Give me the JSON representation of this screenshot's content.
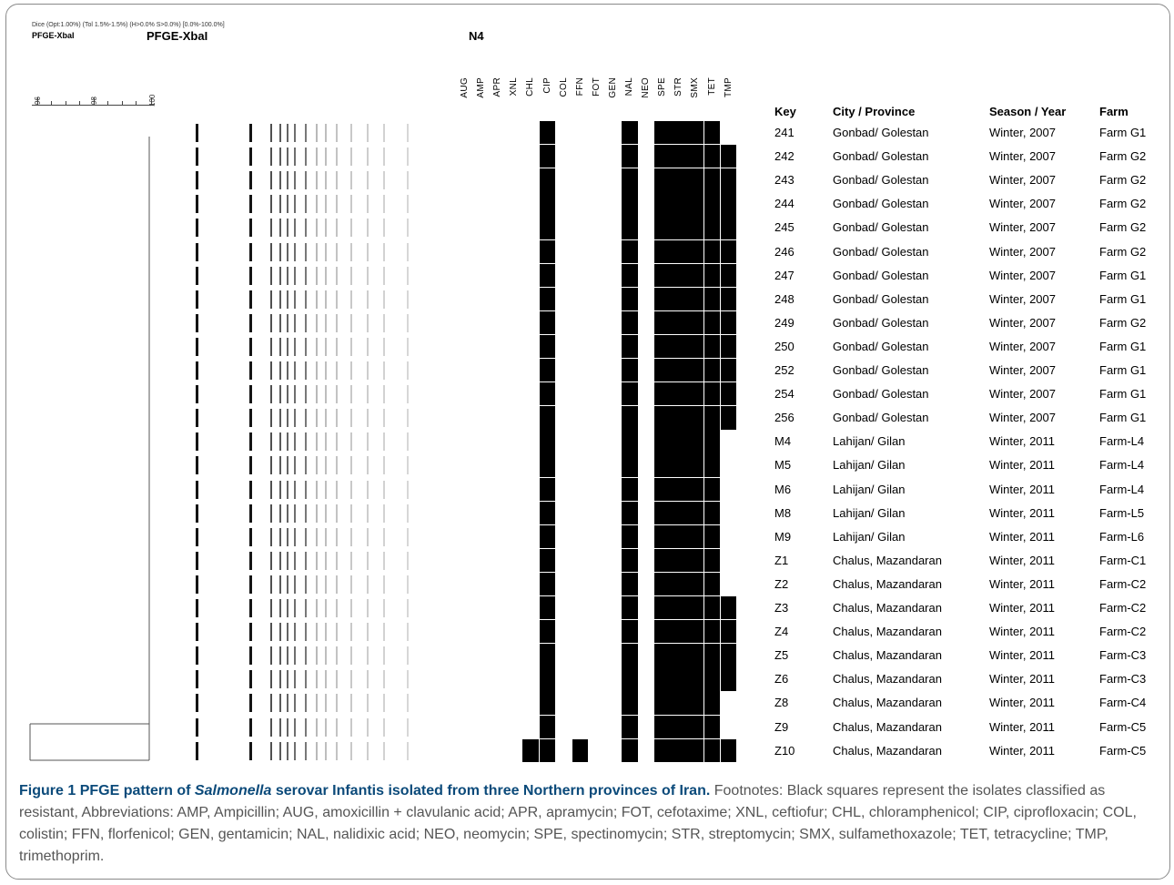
{
  "header": {
    "dice_params": "Dice (Opt:1.00%) (Tol 1.5%-1.5%) (H>0.0% S>0.0%) [0.0%-100.0%]",
    "experiment_small": "PFGE-XbaI",
    "experiment_big": "PFGE-XbaI",
    "cluster_label": "N4"
  },
  "scale": {
    "labels": [
      "96",
      "98",
      "100"
    ]
  },
  "drugs": [
    "AUG",
    "AMP",
    "APR",
    "XNL",
    "CHL",
    "CIP",
    "COL",
    "FFN",
    "FOT",
    "GEN",
    "NAL",
    "NEO",
    "SPE",
    "STR",
    "SMX",
    "TET",
    "TMP"
  ],
  "columns": {
    "key": "Key",
    "city": "City / Province",
    "season": "Season / Year",
    "farm": "Farm"
  },
  "isolates": [
    {
      "key": "241",
      "city": "Gonbad/ Golestan",
      "season": "Winter, 2007",
      "farm": "Farm G1",
      "resistant": [
        "CIP",
        "NAL",
        "SPE",
        "STR",
        "SMX",
        "TET"
      ]
    },
    {
      "key": "242",
      "city": "Gonbad/ Golestan",
      "season": "Winter, 2007",
      "farm": "Farm G2",
      "resistant": [
        "CIP",
        "NAL",
        "SPE",
        "STR",
        "SMX",
        "TET",
        "TMP"
      ]
    },
    {
      "key": "243",
      "city": "Gonbad/ Golestan",
      "season": "Winter, 2007",
      "farm": "Farm G2",
      "resistant": [
        "CIP",
        "NAL",
        "SPE",
        "STR",
        "SMX",
        "TET",
        "TMP"
      ]
    },
    {
      "key": "244",
      "city": "Gonbad/ Golestan",
      "season": "Winter, 2007",
      "farm": "Farm G2",
      "resistant": [
        "CIP",
        "NAL",
        "SPE",
        "STR",
        "SMX",
        "TET",
        "TMP"
      ]
    },
    {
      "key": "245",
      "city": "Gonbad/ Golestan",
      "season": "Winter, 2007",
      "farm": "Farm G2",
      "resistant": [
        "CIP",
        "NAL",
        "SPE",
        "STR",
        "SMX",
        "TET",
        "TMP"
      ]
    },
    {
      "key": "246",
      "city": "Gonbad/ Golestan",
      "season": "Winter, 2007",
      "farm": "Farm G2",
      "resistant": [
        "CIP",
        "NAL",
        "SPE",
        "STR",
        "SMX",
        "TET",
        "TMP"
      ]
    },
    {
      "key": "247",
      "city": "Gonbad/ Golestan",
      "season": "Winter, 2007",
      "farm": "Farm G1",
      "resistant": [
        "CIP",
        "NAL",
        "SPE",
        "STR",
        "SMX",
        "TET",
        "TMP"
      ]
    },
    {
      "key": "248",
      "city": "Gonbad/ Golestan",
      "season": "Winter, 2007",
      "farm": "Farm G1",
      "resistant": [
        "CIP",
        "NAL",
        "SPE",
        "STR",
        "SMX",
        "TET",
        "TMP"
      ]
    },
    {
      "key": "249",
      "city": "Gonbad/ Golestan",
      "season": "Winter, 2007",
      "farm": "Farm G2",
      "resistant": [
        "CIP",
        "NAL",
        "SPE",
        "STR",
        "SMX",
        "TET",
        "TMP"
      ]
    },
    {
      "key": "250",
      "city": "Gonbad/ Golestan",
      "season": "Winter, 2007",
      "farm": "Farm G1",
      "resistant": [
        "CIP",
        "NAL",
        "SPE",
        "STR",
        "SMX",
        "TET",
        "TMP"
      ]
    },
    {
      "key": "252",
      "city": "Gonbad/ Golestan",
      "season": "Winter, 2007",
      "farm": "Farm G1",
      "resistant": [
        "CIP",
        "NAL",
        "SPE",
        "STR",
        "SMX",
        "TET",
        "TMP"
      ]
    },
    {
      "key": "254",
      "city": "Gonbad/ Golestan",
      "season": "Winter, 2007",
      "farm": "Farm G1",
      "resistant": [
        "CIP",
        "NAL",
        "SPE",
        "STR",
        "SMX",
        "TET",
        "TMP"
      ]
    },
    {
      "key": "256",
      "city": "Gonbad/ Golestan",
      "season": "Winter, 2007",
      "farm": "Farm G1",
      "resistant": [
        "CIP",
        "NAL",
        "SPE",
        "STR",
        "SMX",
        "TET",
        "TMP"
      ]
    },
    {
      "key": "M4",
      "city": "Lahijan/ Gilan",
      "season": "Winter, 2011",
      "farm": "Farm-L4",
      "resistant": [
        "CIP",
        "NAL",
        "SPE",
        "STR",
        "SMX",
        "TET"
      ]
    },
    {
      "key": "M5",
      "city": "Lahijan/ Gilan",
      "season": "Winter, 2011",
      "farm": "Farm-L4",
      "resistant": [
        "CIP",
        "NAL",
        "SPE",
        "STR",
        "SMX",
        "TET"
      ]
    },
    {
      "key": "M6",
      "city": "Lahijan/ Gilan",
      "season": "Winter, 2011",
      "farm": "Farm-L4",
      "resistant": [
        "CIP",
        "NAL",
        "SPE",
        "STR",
        "SMX",
        "TET"
      ]
    },
    {
      "key": "M8",
      "city": "Lahijan/ Gilan",
      "season": "Winter, 2011",
      "farm": "Farm-L5",
      "resistant": [
        "CIP",
        "NAL",
        "SPE",
        "STR",
        "SMX",
        "TET"
      ]
    },
    {
      "key": "M9",
      "city": "Lahijan/ Gilan",
      "season": "Winter, 2011",
      "farm": "Farm-L6",
      "resistant": [
        "CIP",
        "NAL",
        "SPE",
        "STR",
        "SMX",
        "TET"
      ]
    },
    {
      "key": "Z1",
      "city": "Chalus, Mazandaran",
      "season": "Winter, 2011",
      "farm": "Farm-C1",
      "resistant": [
        "CIP",
        "NAL",
        "SPE",
        "STR",
        "SMX",
        "TET"
      ]
    },
    {
      "key": "Z2",
      "city": "Chalus, Mazandaran",
      "season": "Winter, 2011",
      "farm": "Farm-C2",
      "resistant": [
        "CIP",
        "NAL",
        "SPE",
        "STR",
        "SMX",
        "TET"
      ]
    },
    {
      "key": "Z3",
      "city": "Chalus, Mazandaran",
      "season": "Winter, 2011",
      "farm": "Farm-C2",
      "resistant": [
        "CIP",
        "NAL",
        "SPE",
        "STR",
        "SMX",
        "TET",
        "TMP"
      ]
    },
    {
      "key": "Z4",
      "city": "Chalus, Mazandaran",
      "season": "Winter, 2011",
      "farm": "Farm-C2",
      "resistant": [
        "CIP",
        "NAL",
        "SPE",
        "STR",
        "SMX",
        "TET",
        "TMP"
      ]
    },
    {
      "key": "Z5",
      "city": "Chalus, Mazandaran",
      "season": "Winter, 2011",
      "farm": "Farm-C3",
      "resistant": [
        "CIP",
        "NAL",
        "SPE",
        "STR",
        "SMX",
        "TET",
        "TMP"
      ]
    },
    {
      "key": "Z6",
      "city": "Chalus, Mazandaran",
      "season": "Winter, 2011",
      "farm": "Farm-C3",
      "resistant": [
        "CIP",
        "NAL",
        "SPE",
        "STR",
        "SMX",
        "TET",
        "TMP"
      ]
    },
    {
      "key": "Z8",
      "city": "Chalus, Mazandaran",
      "season": "Winter, 2011",
      "farm": "Farm-C4",
      "resistant": [
        "CIP",
        "NAL",
        "SPE",
        "STR",
        "SMX",
        "TET"
      ]
    },
    {
      "key": "Z9",
      "city": "Chalus, Mazandaran",
      "season": "Winter, 2011",
      "farm": "Farm-C5",
      "resistant": [
        "CIP",
        "NAL",
        "SPE",
        "STR",
        "SMX",
        "TET"
      ]
    },
    {
      "key": "Z10",
      "city": "Chalus, Mazandaran",
      "season": "Winter, 2011",
      "farm": "Farm-C5",
      "resistant": [
        "CHL",
        "CIP",
        "FFN",
        "NAL",
        "SPE",
        "STR",
        "SMX",
        "TET",
        "TMP"
      ]
    }
  ],
  "caption": {
    "label": "Figure 1",
    "title_pre": "PFGE pattern of ",
    "title_italic": "Salmonella",
    "title_post": " serovar Infantis isolated from three Northern provinces of Iran.",
    "footnote": " Footnotes: Black squares represent the isolates classified as resistant, Abbreviations: AMP, Ampicillin; AUG, amoxicillin + clavulanic acid; APR, apramycin; FOT, cefotaxime; XNL, ceftiofur; CHL, chloramphenicol; CIP, ciprofloxacin; COL, colistin; FFN, florfenicol; GEN, gentamicin; NAL, nalidixic acid; NEO, neomycin; SPE, spectinomycin; STR, streptomycin; SMX, sulfamethoxazole; TET, tetracycline; TMP, trimethoprim."
  }
}
